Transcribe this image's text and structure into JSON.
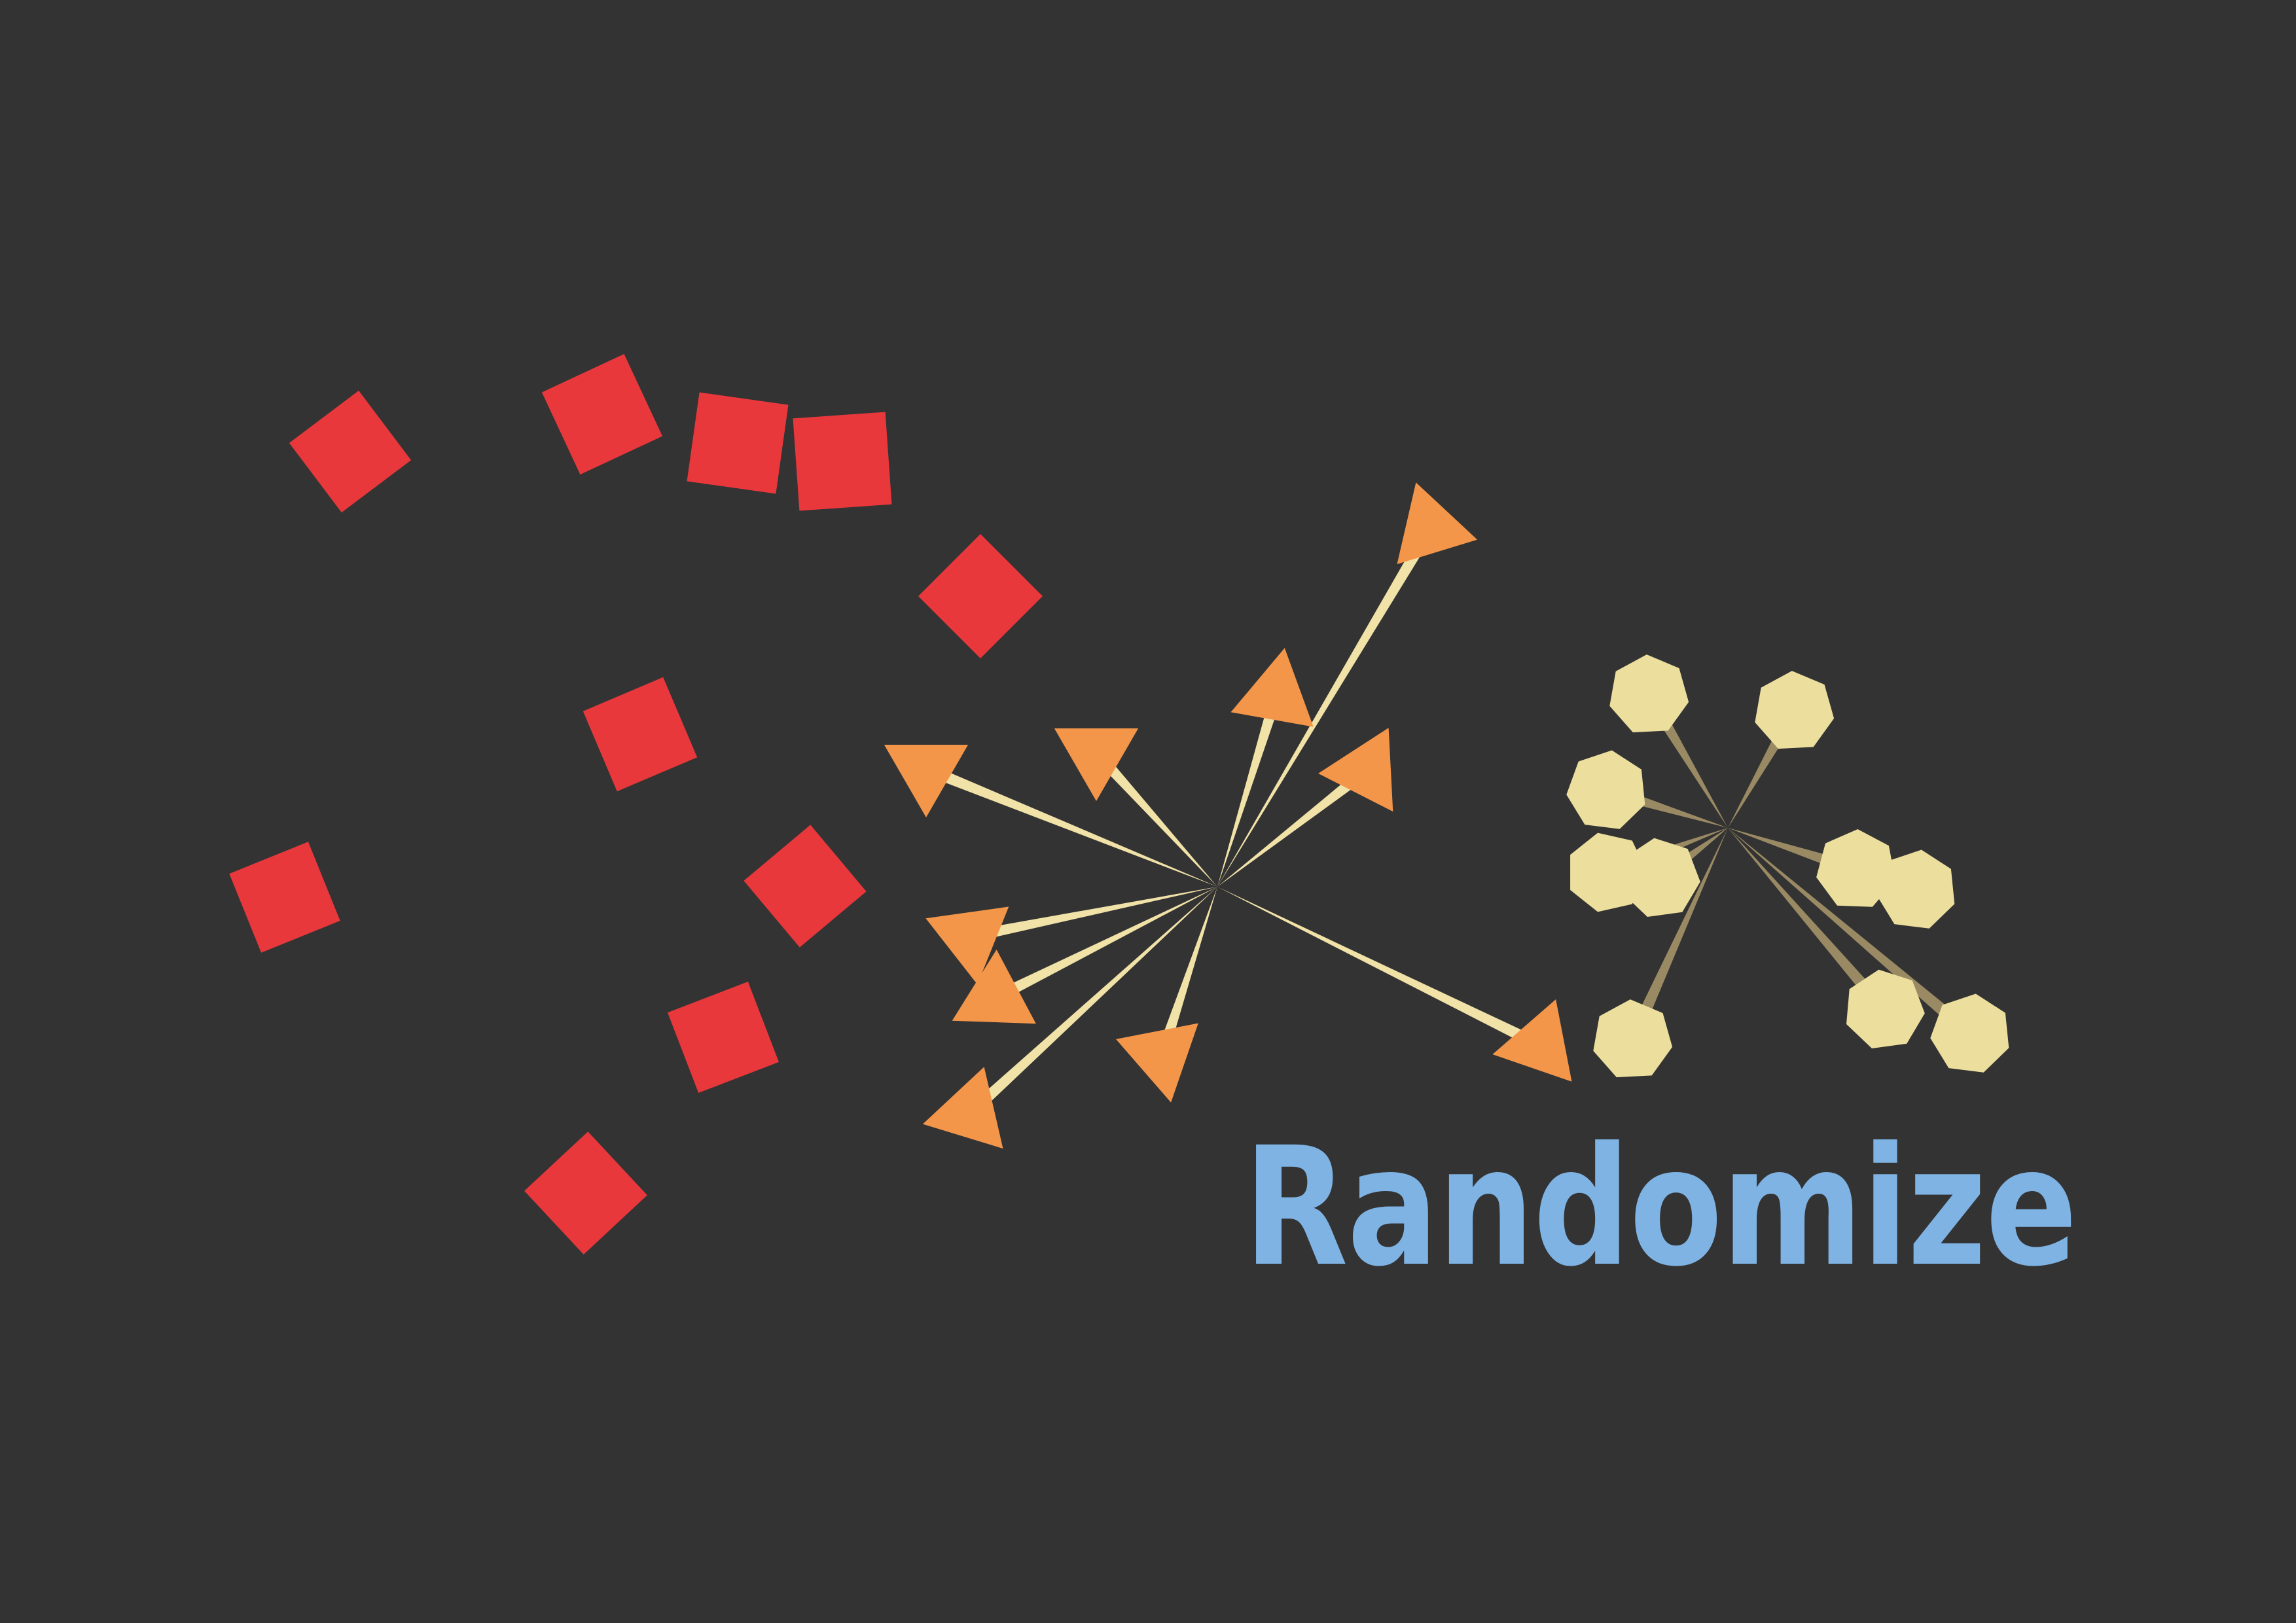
{
  "title": "Randomize",
  "colors": {
    "background": "#333333",
    "square": "#E8383C",
    "triangle": "#F3964A",
    "spoke_triangle": "#F1E2A8",
    "hexagon": "#ECDF9E",
    "spoke_hexagon": "#9A8A64",
    "title": "#7FB3E3"
  },
  "icons": {
    "squares": "red-square-shape",
    "triangles": "orange-triangle-shape",
    "hexagons": "yellow-hexagon-shape"
  }
}
